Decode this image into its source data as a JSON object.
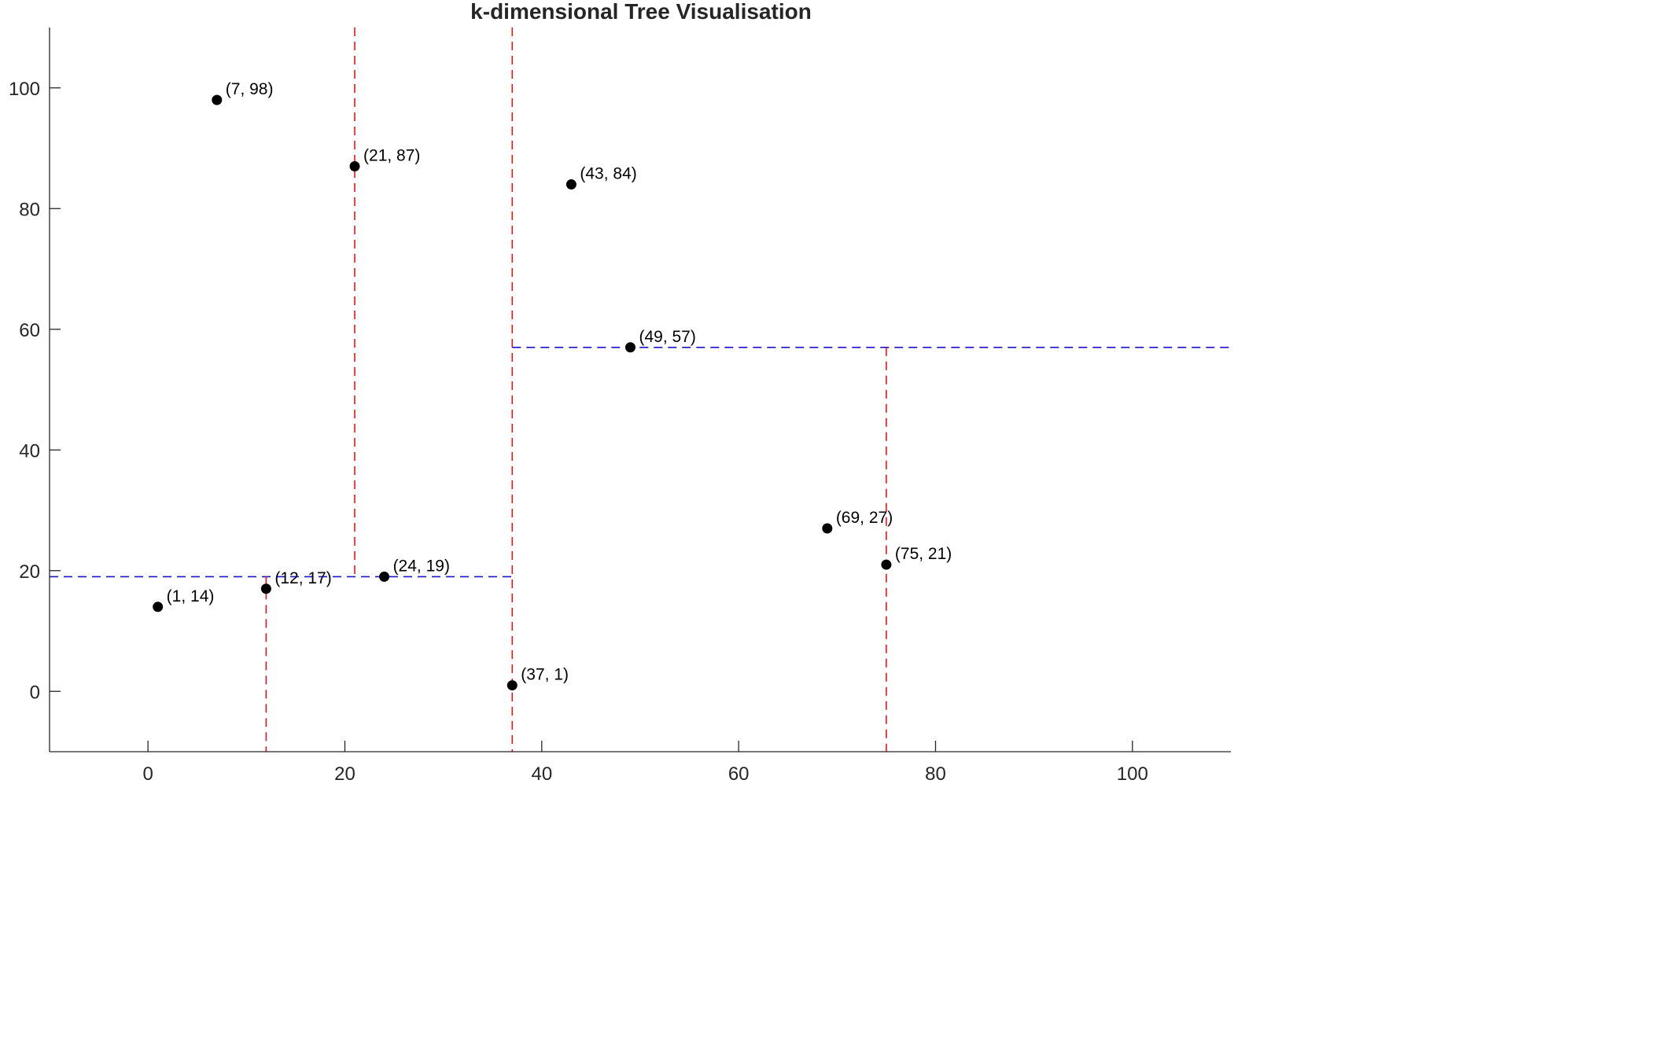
{
  "chart_data": {
    "type": "scatter",
    "title": "k-dimensional Tree Visualisation",
    "xlabel": "",
    "ylabel": "",
    "xlim": [
      -10,
      110
    ],
    "ylim": [
      -10,
      110
    ],
    "xticks": [
      0,
      20,
      40,
      60,
      80,
      100
    ],
    "yticks": [
      0,
      20,
      40,
      60,
      80,
      100
    ],
    "grid": false,
    "points": [
      {
        "x": 7,
        "y": 98,
        "label": "(7, 98)"
      },
      {
        "x": 21,
        "y": 87,
        "label": "(21, 87)"
      },
      {
        "x": 43,
        "y": 84,
        "label": "(43, 84)"
      },
      {
        "x": 49,
        "y": 57,
        "label": "(49, 57)"
      },
      {
        "x": 69,
        "y": 27,
        "label": "(69, 27)"
      },
      {
        "x": 75,
        "y": 21,
        "label": "(75, 21)"
      },
      {
        "x": 24,
        "y": 19,
        "label": "(24, 19)"
      },
      {
        "x": 12,
        "y": 17,
        "label": "(12, 17)"
      },
      {
        "x": 1,
        "y": 14,
        "label": "(1, 14)"
      },
      {
        "x": 37,
        "y": 1,
        "label": "(37, 1)"
      }
    ],
    "split_lines": [
      {
        "orientation": "vertical",
        "x": 37,
        "y_range": [
          -10,
          110
        ],
        "color": "#e8141c"
      },
      {
        "orientation": "horizontal",
        "y": 19,
        "x_range": [
          -10,
          37
        ],
        "color": "#1c14c8"
      },
      {
        "orientation": "vertical",
        "x": 12,
        "y_range": [
          -10,
          19
        ],
        "color": "#e8141c"
      },
      {
        "orientation": "vertical",
        "x": 21,
        "y_range": [
          19,
          110
        ],
        "color": "#e8141c"
      },
      {
        "orientation": "horizontal",
        "y": 57,
        "x_range": [
          37,
          110
        ],
        "color": "#1c14c8"
      },
      {
        "orientation": "vertical",
        "x": 75,
        "y_range": [
          -10,
          57
        ],
        "color": "#e8141c"
      }
    ],
    "point_color": "#000000",
    "axis_color": "#262626"
  }
}
